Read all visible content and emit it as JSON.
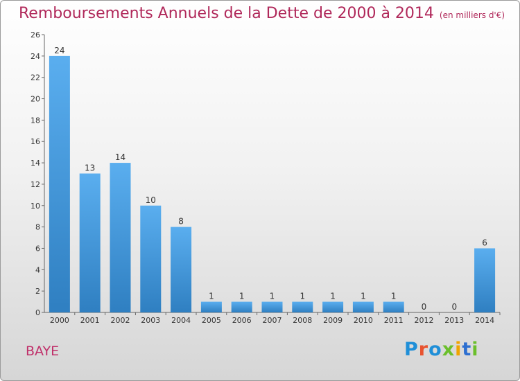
{
  "title": "Remboursements Annuels de la Dette de 2000 à 2014",
  "unit_note": "(en milliers d'€)",
  "place": "BAYE",
  "logo": {
    "text": "Proxiti",
    "colors": [
      "#1f8fd8",
      "#e8532f",
      "#1f8fd8",
      "#6bbf2b",
      "#f0a400",
      "#2d6fd0",
      "#6bbf2b"
    ]
  },
  "chart_data": {
    "type": "bar",
    "title": "Remboursements Annuels de la Dette de 2000 à 2014",
    "subtitle": "(en milliers d'€)",
    "xlabel": "",
    "ylabel": "",
    "categories": [
      "2000",
      "2001",
      "2002",
      "2003",
      "2004",
      "2005",
      "2006",
      "2007",
      "2008",
      "2009",
      "2010",
      "2011",
      "2012",
      "2013",
      "2014"
    ],
    "values": [
      24,
      13,
      14,
      10,
      8,
      1,
      1,
      1,
      1,
      1,
      1,
      1,
      0,
      0,
      6
    ],
    "ylim": [
      0,
      26
    ],
    "yticks": [
      0,
      2,
      4,
      6,
      8,
      10,
      12,
      14,
      16,
      18,
      20,
      22,
      24,
      26
    ],
    "grid": false,
    "legend": "none",
    "bar_color": "#3d95d9"
  }
}
